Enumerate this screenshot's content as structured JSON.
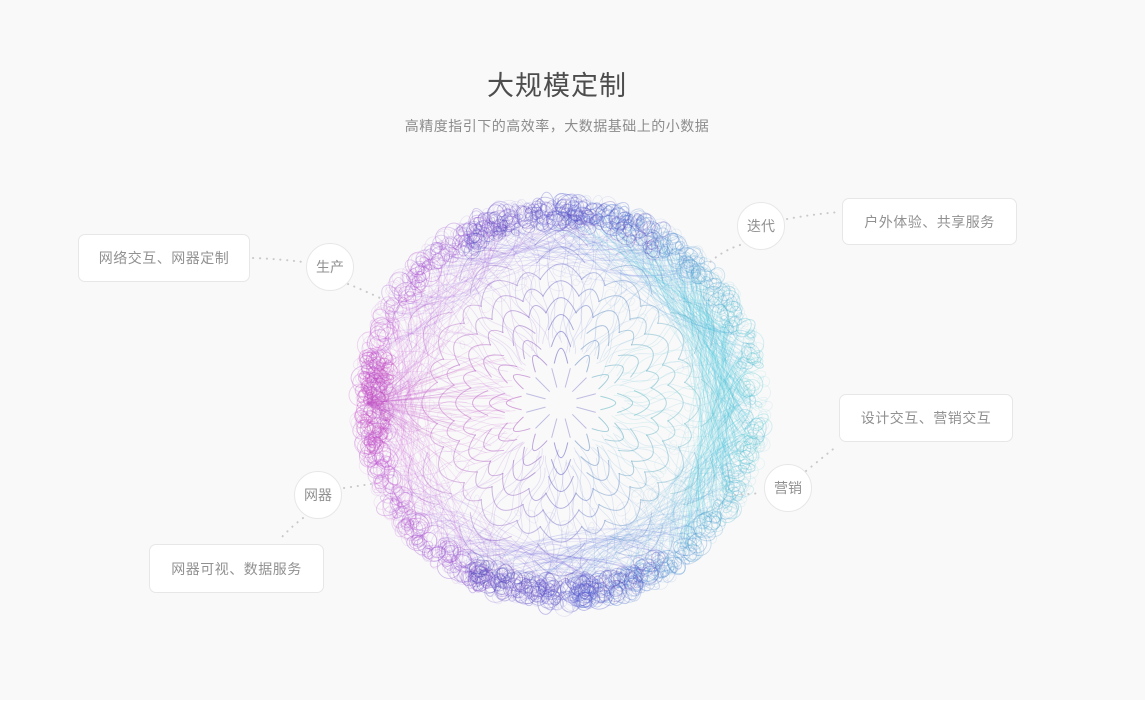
{
  "page": {
    "title": "大规模定制",
    "subtitle": "高精度指引下的高效率，大数据基础上的小数据"
  },
  "diagram": {
    "nodes": [
      {
        "id": "production",
        "label": "生产"
      },
      {
        "id": "iteration",
        "label": "迭代"
      },
      {
        "id": "marketing",
        "label": "营销"
      },
      {
        "id": "net-device",
        "label": "网器"
      }
    ],
    "callouts": [
      {
        "id": "left",
        "label": "网络交互、网器定制",
        "linked_node": "生产"
      },
      {
        "id": "top-right",
        "label": "户外体验、共享服务",
        "linked_node": "迭代"
      },
      {
        "id": "right",
        "label": "设计交互、营销交互",
        "linked_node": "营销"
      },
      {
        "id": "bottom-left",
        "label": "网器可视、数据服务",
        "linked_node": "网器"
      }
    ]
  },
  "colors": {
    "background": "#f9f9f9",
    "card_background": "#ffffff",
    "card_border": "#e7e7e7",
    "title_text": "#4d4d4d",
    "subtitle_text": "#8c8c8c",
    "label_text": "#919191",
    "connector_dots": "#c9c9c9",
    "sphere_magenta": "#b354c4",
    "sphere_indigo": "#5f63b8",
    "sphere_violet": "#7f7ad0",
    "sphere_cyan": "#52cbe0"
  }
}
